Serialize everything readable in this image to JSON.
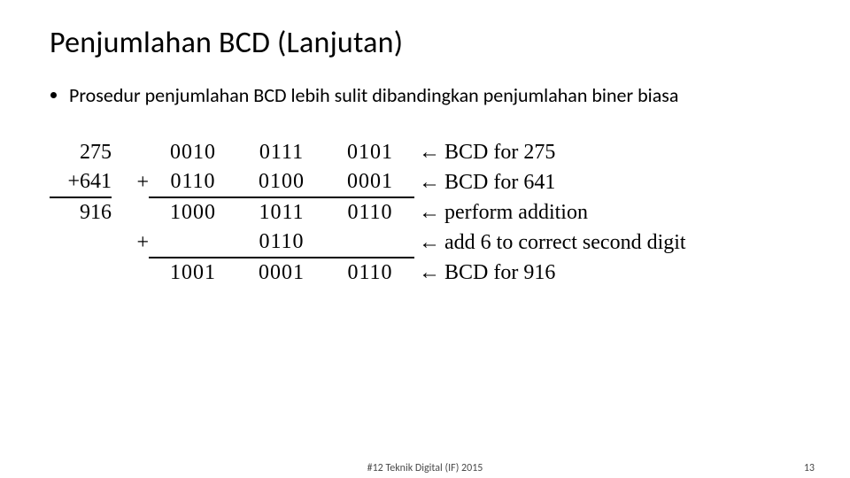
{
  "title": "Penjumlahan BCD (Lanjutan)",
  "bullets": [
    "Prosedur penjumlahan BCD lebih sulit dibandingkan penjumlahan biner biasa"
  ],
  "calc": {
    "rows": [
      {
        "dec": "275",
        "sign": "",
        "n1": "0010",
        "n2": "0111",
        "n3": "0101",
        "underline_dec": false,
        "underline_nib": false,
        "arrow": "←",
        "comment": "BCD for 275"
      },
      {
        "dec": "+641",
        "sign": "+",
        "n1": "0110",
        "n2": "0100",
        "n3": "0001",
        "underline_dec": true,
        "underline_nib": true,
        "arrow": "←",
        "comment": "BCD for 641"
      },
      {
        "dec": "916",
        "sign": "",
        "n1": "1000",
        "n2": "1011",
        "n3": "0110",
        "underline_dec": false,
        "underline_nib": false,
        "arrow": "←",
        "comment": "perform addition"
      },
      {
        "dec": "",
        "sign": "+",
        "n1": "",
        "n2": "0110",
        "n3": "",
        "underline_dec": false,
        "underline_nib": true,
        "arrow": "←",
        "comment": "add 6 to correct second digit"
      },
      {
        "dec": "",
        "sign": "",
        "n1": "1001",
        "n2": "0001",
        "n3": "0110",
        "underline_dec": false,
        "underline_nib": false,
        "arrow": "←",
        "comment": "BCD for 916"
      }
    ],
    "glyph_arrow": "←"
  },
  "footer": {
    "center": "#12 Teknik Digital (IF) 2015",
    "page": "13"
  },
  "colors": {
    "bg": "#ffffff",
    "text": "#000000",
    "footer": "#4a4a4a"
  }
}
